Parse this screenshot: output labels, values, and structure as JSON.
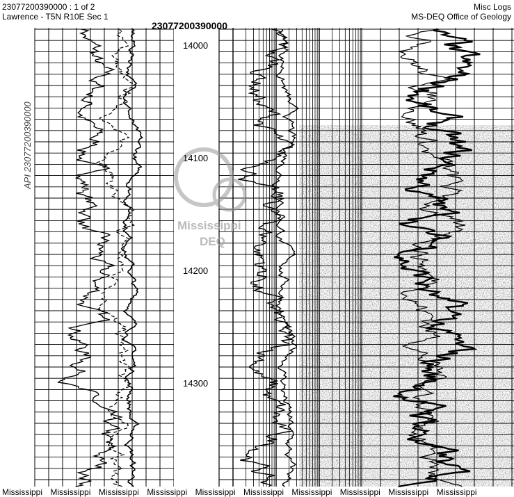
{
  "header": {
    "left_line1": "23077200390000 : 1 of 2",
    "left_line2": "Lawrence - T5N R10E Sec 1",
    "center": "23077200390000",
    "right_line1": "Misc Logs",
    "right_line2": "MS-DEQ Office of Geology"
  },
  "annotation": "API 23077200390000",
  "depths": [
    "14000",
    "14100",
    "14200",
    "14300"
  ],
  "watermark": {
    "line1": "Mississippi",
    "line2": "DEQ"
  },
  "footer": [
    "Mississippi",
    "Mississippi",
    "Mississippi",
    "Mississippi",
    "Mississippi",
    "Mississippi",
    "Mississippi",
    "Mississippi",
    "Mississippi",
    "Mississippi"
  ]
}
